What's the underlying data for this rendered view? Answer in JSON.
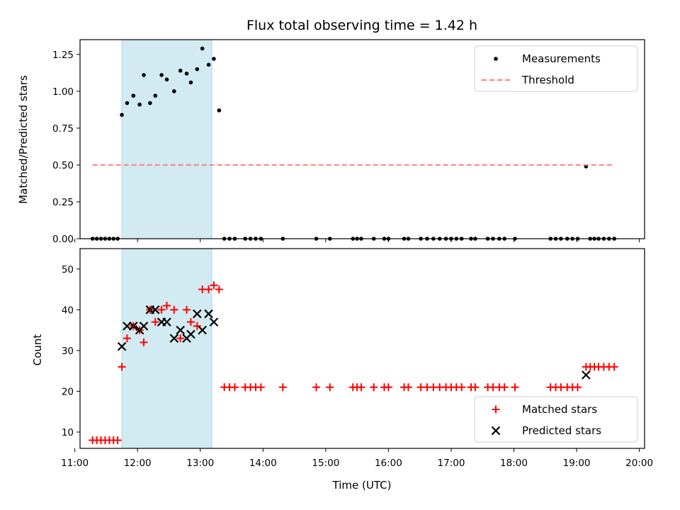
{
  "chart_data": [
    {
      "type": "scatter",
      "title": "Flux total observing time = 1.42 h",
      "xlabel": "",
      "ylabel": "Matched/Predicted stars",
      "xlim": [
        "11:05",
        "20:05"
      ],
      "ylim": [
        0,
        1.35
      ],
      "yticks": [
        "0.00",
        "0.25",
        "0.50",
        "0.75",
        "1.00",
        "1.25"
      ],
      "yticks_values": [
        0,
        0.25,
        0.5,
        0.75,
        1.0,
        1.25
      ],
      "shaded_span": [
        "11:45",
        "13:11"
      ],
      "shaded_color": "#add8e6",
      "legend_position": "upper right",
      "series": [
        {
          "name": "Measurements",
          "marker": "dot",
          "color": "#000000",
          "x": [
            "11:17",
            "11:21",
            "11:25",
            "11:29",
            "11:33",
            "11:37",
            "11:41",
            "11:45",
            "11:50",
            "11:56",
            "12:02",
            "12:06",
            "12:12",
            "12:17",
            "12:23",
            "12:28",
            "12:35",
            "12:41",
            "12:47",
            "12:51",
            "12:57",
            "13:02",
            "13:08",
            "13:13",
            "13:18",
            "13:23",
            "13:28",
            "13:33",
            "13:43",
            "13:48",
            "13:53",
            "13:58",
            "14:19",
            "14:51",
            "15:04",
            "15:26",
            "15:30",
            "15:34",
            "15:46",
            "15:56",
            "16:00",
            "16:15",
            "16:19",
            "16:31",
            "16:37",
            "16:43",
            "16:49",
            "16:55",
            "17:00",
            "17:05",
            "17:10",
            "17:19",
            "17:23",
            "17:35",
            "17:40",
            "17:46",
            "17:51",
            "18:01",
            "18:35",
            "18:40",
            "18:45",
            "18:51",
            "18:56",
            "19:01",
            "19:09",
            "19:13",
            "19:17",
            "19:21",
            "19:26",
            "19:31",
            "19:36"
          ],
          "y": [
            0,
            0,
            0,
            0,
            0,
            0,
            0,
            0.84,
            0.92,
            0.97,
            0.91,
            1.11,
            0.92,
            0.97,
            1.11,
            1.08,
            1.0,
            1.14,
            1.12,
            1.06,
            1.15,
            1.29,
            1.18,
            1.22,
            0.87,
            0,
            0,
            0,
            0,
            0,
            0,
            0,
            0,
            0,
            0,
            0,
            0,
            0,
            0,
            0,
            0,
            0,
            0,
            0,
            0,
            0,
            0,
            0,
            0,
            0,
            0,
            0,
            0,
            0,
            0,
            0,
            0,
            0,
            0,
            0,
            0,
            0,
            0,
            0,
            0.49,
            0,
            0,
            0,
            0,
            0,
            0
          ]
        },
        {
          "name": "Threshold",
          "style": "dashed",
          "color": "#ff7f7f",
          "x": [
            "11:17",
            "19:36"
          ],
          "y": [
            0.5,
            0.5
          ]
        }
      ]
    },
    {
      "type": "scatter",
      "title": "",
      "xlabel": "Time (UTC)",
      "ylabel": "Count",
      "xlim": [
        "11:05",
        "20:05"
      ],
      "ylim": [
        6,
        55
      ],
      "yticks": [
        "10",
        "20",
        "30",
        "40",
        "50"
      ],
      "yticks_values": [
        10,
        20,
        30,
        40,
        50
      ],
      "xticks": [
        "11:00",
        "12:00",
        "13:00",
        "14:00",
        "15:00",
        "16:00",
        "17:00",
        "18:00",
        "19:00",
        "20:00"
      ],
      "shaded_span": [
        "11:45",
        "13:11"
      ],
      "shaded_color": "#add8e6",
      "legend_position": "lower right",
      "series": [
        {
          "name": "Matched stars",
          "marker": "plus",
          "color": "#ff0000",
          "x": [
            "11:17",
            "11:21",
            "11:25",
            "11:29",
            "11:33",
            "11:37",
            "11:41",
            "11:45",
            "11:50",
            "11:56",
            "12:02",
            "12:06",
            "12:12",
            "12:17",
            "12:23",
            "12:28",
            "12:35",
            "12:41",
            "12:47",
            "12:51",
            "12:57",
            "13:02",
            "13:08",
            "13:13",
            "13:18",
            "13:23",
            "13:28",
            "13:33",
            "13:43",
            "13:48",
            "13:53",
            "13:58",
            "14:19",
            "14:51",
            "15:04",
            "15:26",
            "15:30",
            "15:34",
            "15:46",
            "15:56",
            "16:00",
            "16:15",
            "16:19",
            "16:31",
            "16:37",
            "16:43",
            "16:49",
            "16:55",
            "17:00",
            "17:05",
            "17:10",
            "17:19",
            "17:23",
            "17:35",
            "17:40",
            "17:46",
            "17:51",
            "18:01",
            "18:35",
            "18:40",
            "18:45",
            "18:51",
            "18:56",
            "19:01",
            "19:09",
            "19:13",
            "19:17",
            "19:21",
            "19:26",
            "19:31",
            "19:36"
          ],
          "y": [
            8,
            8,
            8,
            8,
            8,
            8,
            8,
            26,
            33,
            36,
            35,
            32,
            40,
            37,
            40,
            41,
            40,
            33,
            40,
            37,
            36,
            45,
            45,
            46,
            45,
            21,
            21,
            21,
            21,
            21,
            21,
            21,
            21,
            21,
            21,
            21,
            21,
            21,
            21,
            21,
            21,
            21,
            21,
            21,
            21,
            21,
            21,
            21,
            21,
            21,
            21,
            21,
            21,
            21,
            21,
            21,
            21,
            21,
            21,
            21,
            21,
            21,
            21,
            21,
            26,
            26,
            26,
            26,
            26,
            26,
            26
          ]
        },
        {
          "name": "Predicted stars",
          "marker": "x",
          "color": "#000000",
          "x": [
            "11:45",
            "11:50",
            "11:56",
            "12:02",
            "12:06",
            "12:12",
            "12:17",
            "12:23",
            "12:28",
            "12:35",
            "12:41",
            "12:47",
            "12:51",
            "12:57",
            "13:02",
            "13:08",
            "13:13",
            "19:09"
          ],
          "y": [
            31,
            36,
            36,
            35,
            36,
            40,
            40,
            37,
            37,
            33,
            35,
            33,
            34,
            39,
            35,
            39,
            37,
            24
          ]
        }
      ]
    }
  ]
}
